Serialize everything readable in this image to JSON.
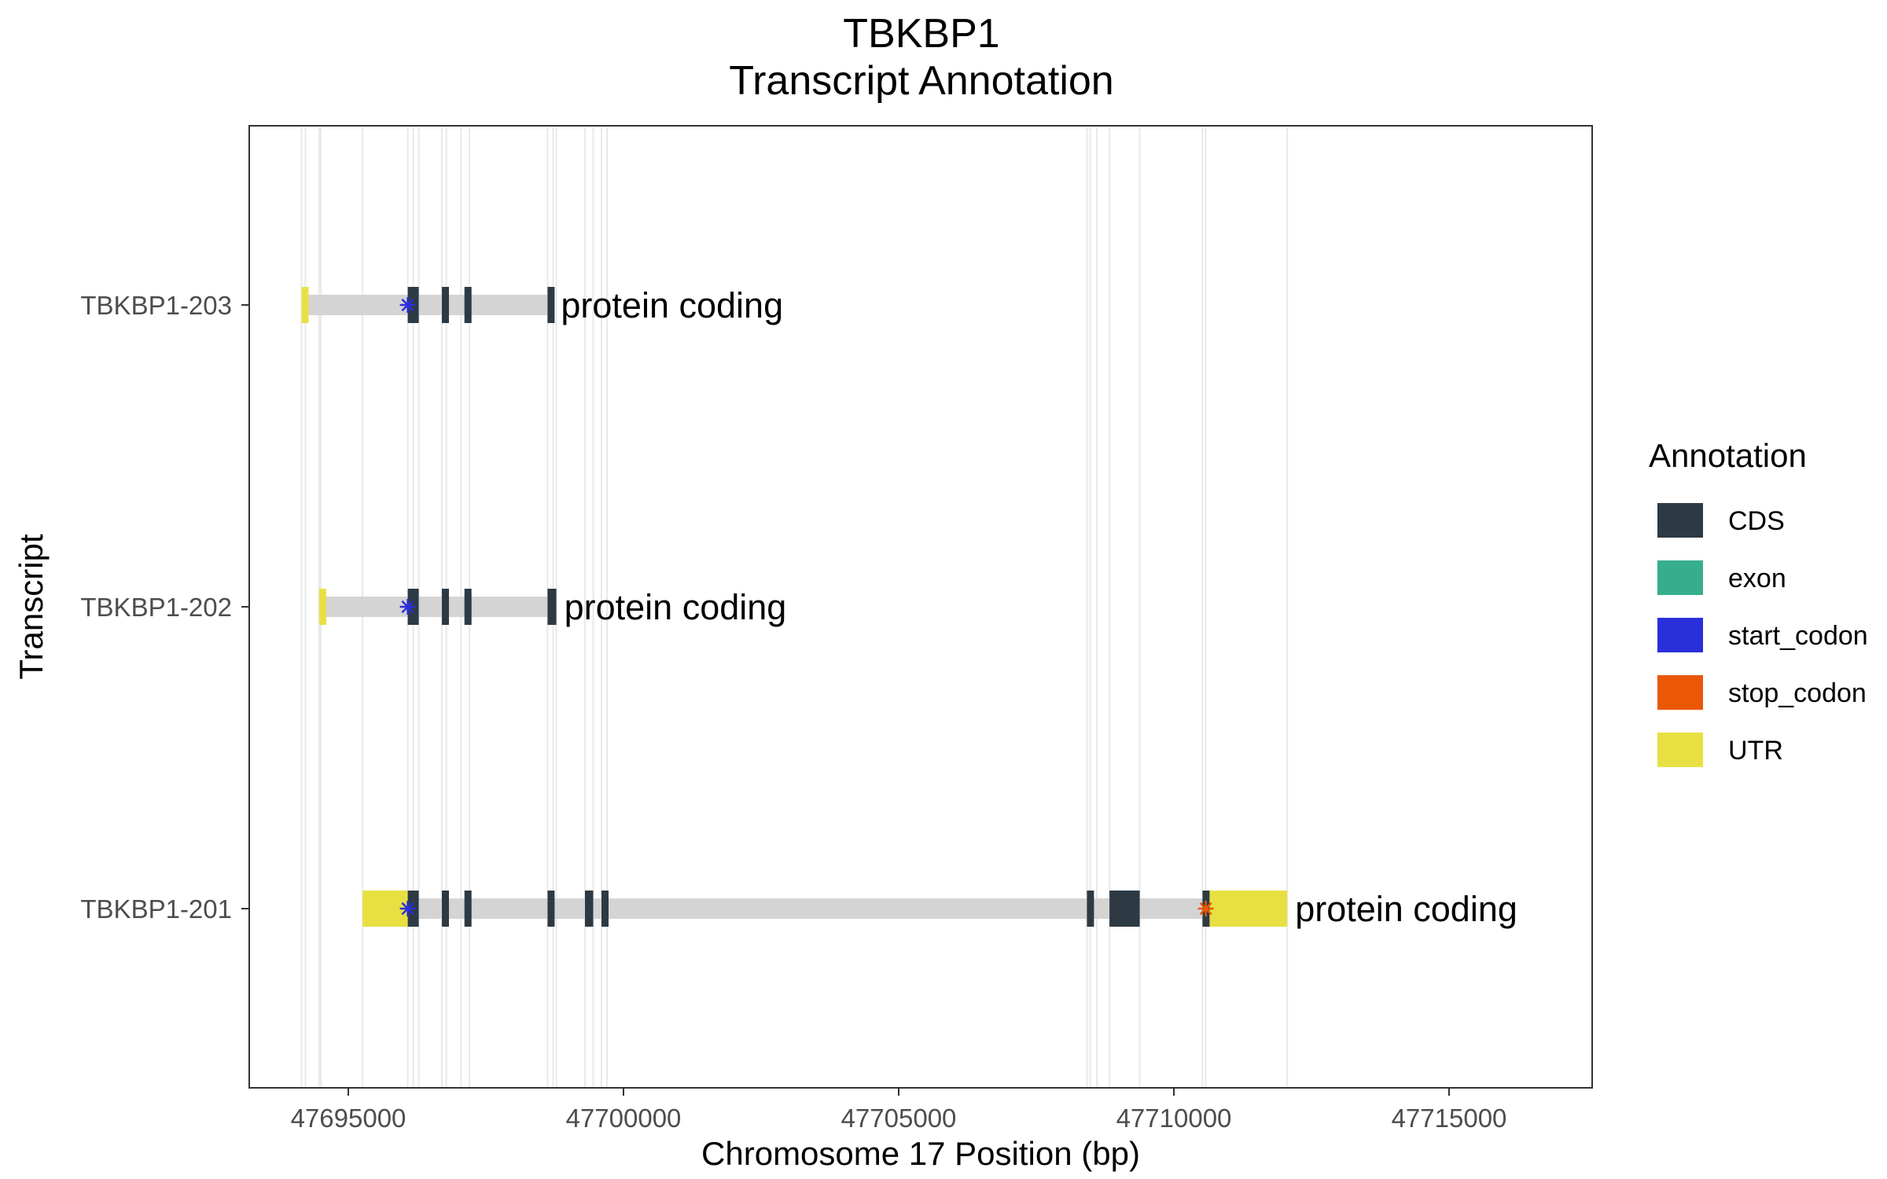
{
  "chart_data": {
    "type": "gene_transcript_annotation",
    "title": "TBKBP1",
    "subtitle": "Transcript Annotation",
    "xlabel": "Chromosome 17 Position (bp)",
    "ylabel": "Transcript",
    "xlim": [
      47693200,
      47717600
    ],
    "x_ticks": [
      47695000,
      47700000,
      47705000,
      47710000,
      47715000
    ],
    "x_tick_labels": [
      "47695000",
      "47700000",
      "47705000",
      "47710000",
      "47715000"
    ],
    "gridlines": "vertical at exon boundaries",
    "legend": {
      "title": "Annotation",
      "position": "right",
      "entries": [
        {
          "label": "CDS",
          "color": "#2d3a44"
        },
        {
          "label": "exon",
          "color": "#36ae8e"
        },
        {
          "label": "start_codon",
          "color": "#2b2fdb"
        },
        {
          "label": "stop_codon",
          "color": "#ea5806"
        },
        {
          "label": "UTR",
          "color": "#e8e043"
        }
      ]
    },
    "intron_color": "#d4d4d4",
    "grid_color": "#e9e9e9",
    "exon_boundaries": [
      47694150,
      47694220,
      47694470,
      47694500,
      47695260,
      47696080,
      47696180,
      47696280,
      47696700,
      47696780,
      47697050,
      47697200,
      47698620,
      47698720,
      47698780,
      47699300,
      47699450,
      47699600,
      47699700,
      47708420,
      47708480,
      47708600,
      47708830,
      47709380,
      47710520,
      47710580,
      47712060
    ],
    "transcripts": [
      {
        "name": "TBKBP1-203",
        "biotype": "protein coding",
        "start": 47694150,
        "end": 47698720,
        "utr": [
          [
            47694150,
            47694220
          ]
        ],
        "cds": [
          [
            47696080,
            47696280
          ],
          [
            47696700,
            47696780
          ],
          [
            47697110,
            47697200
          ],
          [
            47698620,
            47698720
          ]
        ],
        "start_codon": 47696080,
        "stop_codon": null
      },
      {
        "name": "TBKBP1-202",
        "biotype": "protein coding",
        "start": 47694470,
        "end": 47698780,
        "utr": [
          [
            47694470,
            47694500
          ]
        ],
        "cds": [
          [
            47696080,
            47696280
          ],
          [
            47696700,
            47696780
          ],
          [
            47697110,
            47697200
          ],
          [
            47698620,
            47698780
          ]
        ],
        "start_codon": 47696080,
        "stop_codon": null
      },
      {
        "name": "TBKBP1-201",
        "biotype": "protein coding",
        "start": 47695260,
        "end": 47712060,
        "utr": [
          [
            47695260,
            47696080
          ],
          [
            47710580,
            47712060
          ]
        ],
        "cds": [
          [
            47696080,
            47696280
          ],
          [
            47696700,
            47696780
          ],
          [
            47697110,
            47697200
          ],
          [
            47698620,
            47698720
          ],
          [
            47699300,
            47699450
          ],
          [
            47699600,
            47699700
          ],
          [
            47708420,
            47708480
          ],
          [
            47708830,
            47709380
          ],
          [
            47710520,
            47710580
          ]
        ],
        "start_codon": 47696080,
        "stop_codon": 47710580
      }
    ]
  }
}
